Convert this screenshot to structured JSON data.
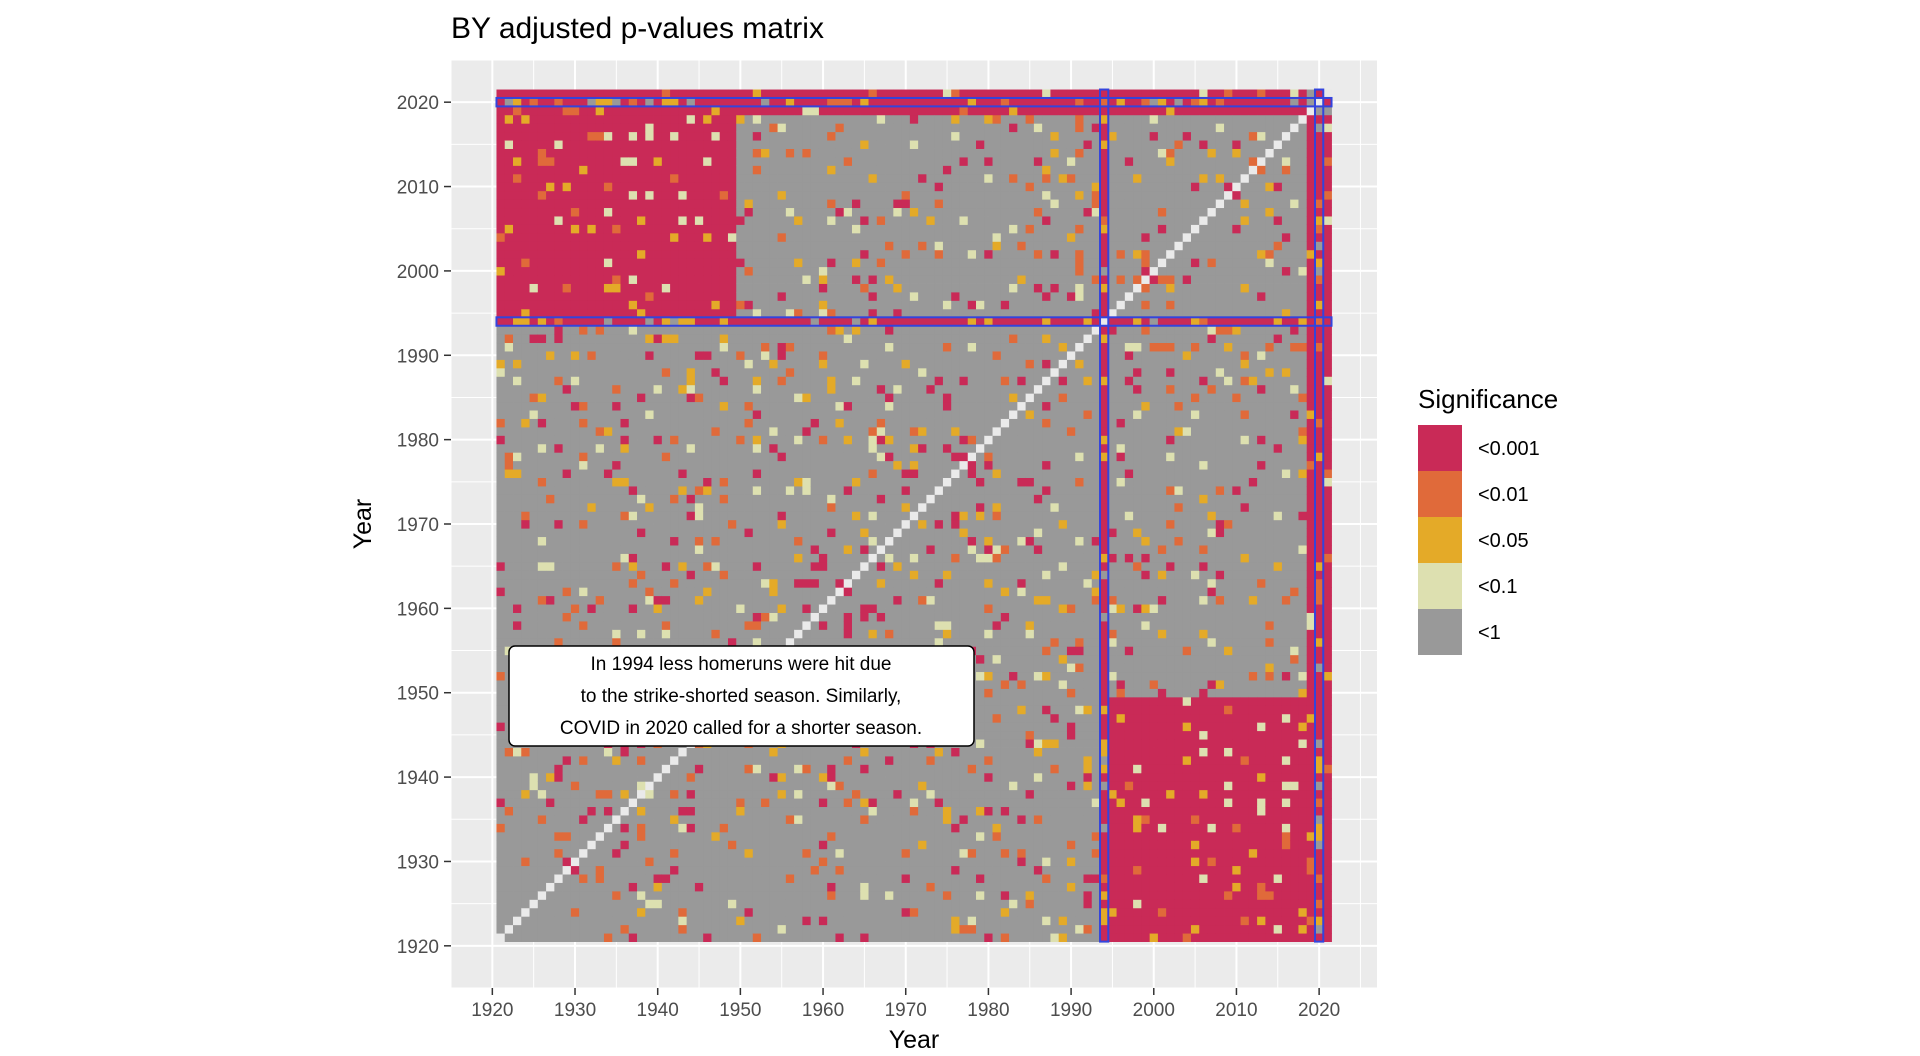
{
  "chart_data": {
    "type": "heatmap",
    "title": "BY adjusted p-values matrix",
    "xlabel": "Year",
    "ylabel": "Year",
    "xlim": [
      1915,
      2027
    ],
    "ylim": [
      1915,
      2025
    ],
    "year_range": [
      1921,
      2021
    ],
    "x_ticks": [
      1920,
      1930,
      1940,
      1950,
      1960,
      1970,
      1980,
      1990,
      2000,
      2010,
      2020
    ],
    "y_ticks": [
      1920,
      1930,
      1940,
      1950,
      1960,
      1970,
      1980,
      1990,
      2000,
      2010,
      2020
    ],
    "grid": true,
    "legend": {
      "title": "Significance",
      "placement": "right",
      "entries": [
        {
          "label": "<0.001",
          "color": "#C92A57"
        },
        {
          "label": "<0.01",
          "color": "#E06A3A"
        },
        {
          "label": "<0.05",
          "color": "#E4AA28"
        },
        {
          "label": "<0.1",
          "color": "#DDE0B0"
        },
        {
          "label": "<1",
          "color": "#999999"
        }
      ]
    },
    "diagonal_color": "#EAEAEA",
    "highlight_color": "#3344DD",
    "highlighted_years": [
      1994,
      2020
    ],
    "significance_blocks": [
      {
        "years_a": [
          1921,
          1949
        ],
        "years_b": [
          1994,
          2021
        ],
        "level": "<0.001"
      },
      {
        "years_a": [
          1921,
          1947
        ],
        "years_b": [
          1947,
          1993
        ],
        "level": "<1"
      },
      {
        "years_a": [
          1950,
          1993
        ],
        "years_b": [
          1950,
          1993
        ],
        "level": "<1"
      },
      {
        "years_a": [
          1950,
          1993
        ],
        "years_b": [
          1995,
          2018
        ],
        "level": "<1"
      },
      {
        "years_a": [
          1995,
          2018
        ],
        "years_b": [
          1995,
          2018
        ],
        "level": "<1"
      },
      {
        "years_a": [
          1921,
          1949
        ],
        "years_b": [
          1921,
          1949
        ],
        "level": "<1"
      },
      {
        "years_a": [
          1995,
          2018
        ],
        "years_b": [
          1921,
          1949
        ],
        "level": "<0.001"
      },
      {
        "years_a": [
          1995,
          2018
        ],
        "years_b": [
          1950,
          1993
        ],
        "level": "<0.001"
      },
      {
        "years_a": [
          2019,
          2021
        ],
        "years_b": [
          1921,
          2018
        ],
        "level": "<0.001"
      }
    ],
    "annotation": {
      "lines": [
        "In 1994 less homeruns were hit due",
        "to the strike-shorted season. Similarly,",
        "COVID in 2020 called for a shorter season."
      ]
    }
  }
}
